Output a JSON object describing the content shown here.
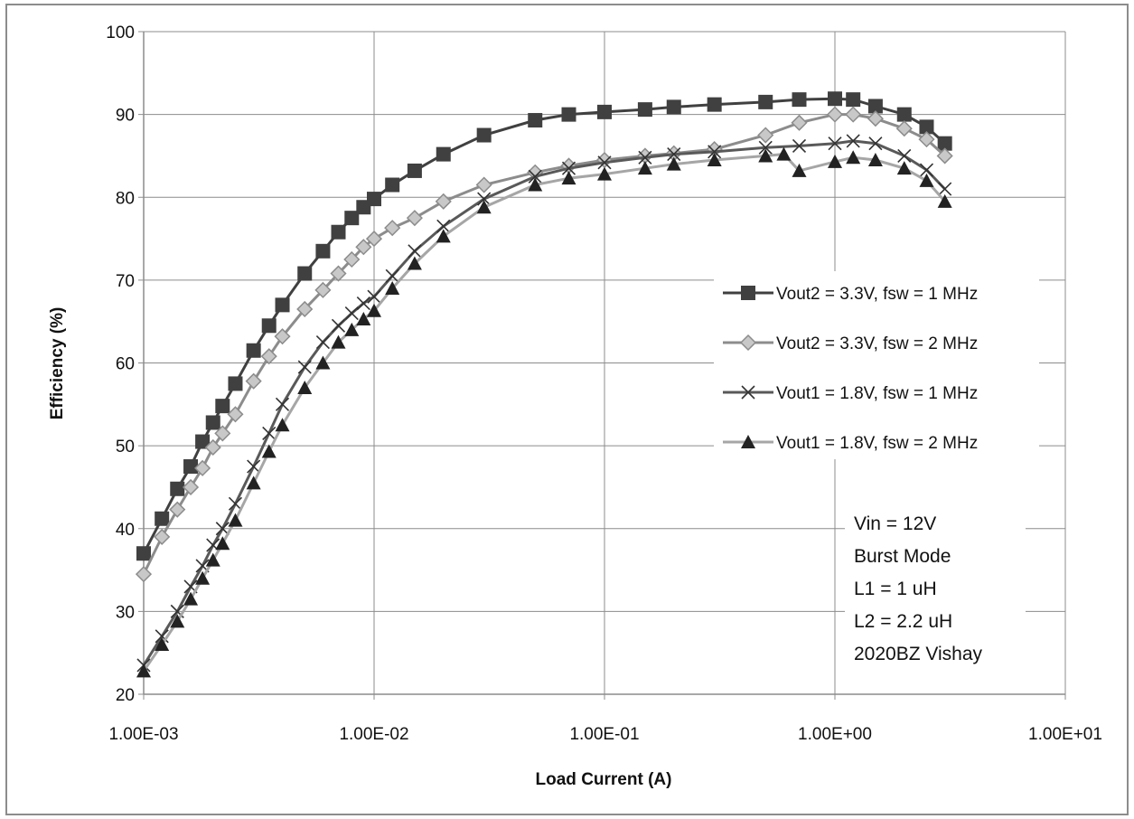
{
  "chart_data": {
    "type": "line",
    "xlabel": "Load Current (A)",
    "ylabel": "Efficiency (%)",
    "x_scale": "log",
    "xlim": [
      0.001,
      10
    ],
    "ylim": [
      20,
      100
    ],
    "x_ticks": [
      "1.00E-03",
      "1.00E-02",
      "1.00E-01",
      "1.00E+00",
      "1.00E+01"
    ],
    "y_ticks": [
      "20",
      "30",
      "40",
      "50",
      "60",
      "70",
      "80",
      "90",
      "100"
    ],
    "grid": true,
    "legend_position": "right",
    "annotation": [
      "Vin = 12V",
      "Burst Mode",
      "L1 = 1 uH",
      "L2 = 2.2 uH",
      "2020BZ Vishay"
    ],
    "series": [
      {
        "name": "Vout2 = 3.3V, fsw = 1 MHz",
        "marker": "square",
        "color": "#404040",
        "marker_color": "#404040",
        "x": [
          0.001,
          0.0012,
          0.0014,
          0.0016,
          0.0018,
          0.002,
          0.0022,
          0.0025,
          0.003,
          0.0035,
          0.004,
          0.005,
          0.006,
          0.007,
          0.008,
          0.009,
          0.01,
          0.012,
          0.015,
          0.02,
          0.03,
          0.05,
          0.07,
          0.1,
          0.15,
          0.2,
          0.3,
          0.5,
          0.7,
          1.0,
          1.2,
          1.5,
          2.0,
          2.5,
          3.0
        ],
        "y": [
          37,
          41.2,
          44.8,
          47.5,
          50.5,
          52.8,
          54.8,
          57.5,
          61.5,
          64.5,
          67,
          70.8,
          73.5,
          75.8,
          77.5,
          78.8,
          79.8,
          81.5,
          83.2,
          85.2,
          87.5,
          89.3,
          90,
          90.3,
          90.6,
          90.9,
          91.2,
          91.5,
          91.8,
          91.9,
          91.8,
          91,
          90,
          88.5,
          86.5
        ]
      },
      {
        "name": "Vout2 = 3.3V, fsw = 2 MHz",
        "marker": "diamond",
        "color": "#8c8c8c",
        "marker_color": "#c8c8c8",
        "x": [
          0.001,
          0.0012,
          0.0014,
          0.0016,
          0.0018,
          0.002,
          0.0022,
          0.0025,
          0.003,
          0.0035,
          0.004,
          0.005,
          0.006,
          0.007,
          0.008,
          0.009,
          0.01,
          0.012,
          0.015,
          0.02,
          0.03,
          0.05,
          0.07,
          0.1,
          0.15,
          0.2,
          0.3,
          0.5,
          0.7,
          1.0,
          1.2,
          1.5,
          2.0,
          2.5,
          3.0
        ],
        "y": [
          34.5,
          39,
          42.3,
          45,
          47.3,
          49.8,
          51.5,
          53.8,
          57.8,
          60.8,
          63.2,
          66.5,
          68.8,
          70.8,
          72.5,
          74,
          75,
          76.3,
          77.5,
          79.5,
          81.5,
          83,
          83.8,
          84.5,
          85,
          85.3,
          85.8,
          87.5,
          89,
          90,
          90,
          89.5,
          88.3,
          87,
          85
        ]
      },
      {
        "name": "Vout1 = 1.8V, fsw = 1 MHz",
        "marker": "x",
        "color": "#595959",
        "marker_color": "#333333",
        "x": [
          0.001,
          0.0012,
          0.0014,
          0.0016,
          0.0018,
          0.002,
          0.0022,
          0.0025,
          0.003,
          0.0035,
          0.004,
          0.005,
          0.006,
          0.007,
          0.008,
          0.009,
          0.01,
          0.012,
          0.015,
          0.02,
          0.03,
          0.05,
          0.07,
          0.1,
          0.15,
          0.2,
          0.3,
          0.5,
          0.7,
          1.0,
          1.2,
          1.5,
          2.0,
          2.5,
          3.0
        ],
        "y": [
          23.5,
          27,
          30,
          33,
          35.5,
          38,
          40,
          43,
          47.5,
          51.5,
          55,
          59.5,
          62.5,
          64.5,
          66,
          67.2,
          68,
          70.5,
          73.5,
          76.5,
          79.8,
          82.5,
          83.5,
          84.2,
          84.8,
          85.2,
          85.5,
          86,
          86.2,
          86.5,
          86.8,
          86.5,
          85,
          83.3,
          81
        ]
      },
      {
        "name": "Vout1 = 1.8V, fsw = 2 MHz",
        "marker": "triangle",
        "color": "#a6a6a6",
        "marker_color": "#222222",
        "x": [
          0.001,
          0.0012,
          0.0014,
          0.0016,
          0.0018,
          0.002,
          0.0022,
          0.0025,
          0.003,
          0.0035,
          0.004,
          0.005,
          0.006,
          0.007,
          0.008,
          0.009,
          0.01,
          0.012,
          0.015,
          0.02,
          0.03,
          0.05,
          0.07,
          0.1,
          0.15,
          0.2,
          0.3,
          0.5,
          0.6,
          0.7,
          1.0,
          1.2,
          1.5,
          2.0,
          2.5,
          3.0
        ],
        "y": [
          22.8,
          26,
          28.8,
          31.5,
          34,
          36.2,
          38.2,
          41,
          45.5,
          49.3,
          52.5,
          57,
          60,
          62.5,
          64,
          65.3,
          66.3,
          69,
          72,
          75.3,
          78.8,
          81.5,
          82.3,
          82.8,
          83.5,
          84,
          84.5,
          85,
          85.2,
          83.2,
          84.3,
          84.8,
          84.5,
          83.5,
          82,
          79.5
        ]
      }
    ]
  }
}
